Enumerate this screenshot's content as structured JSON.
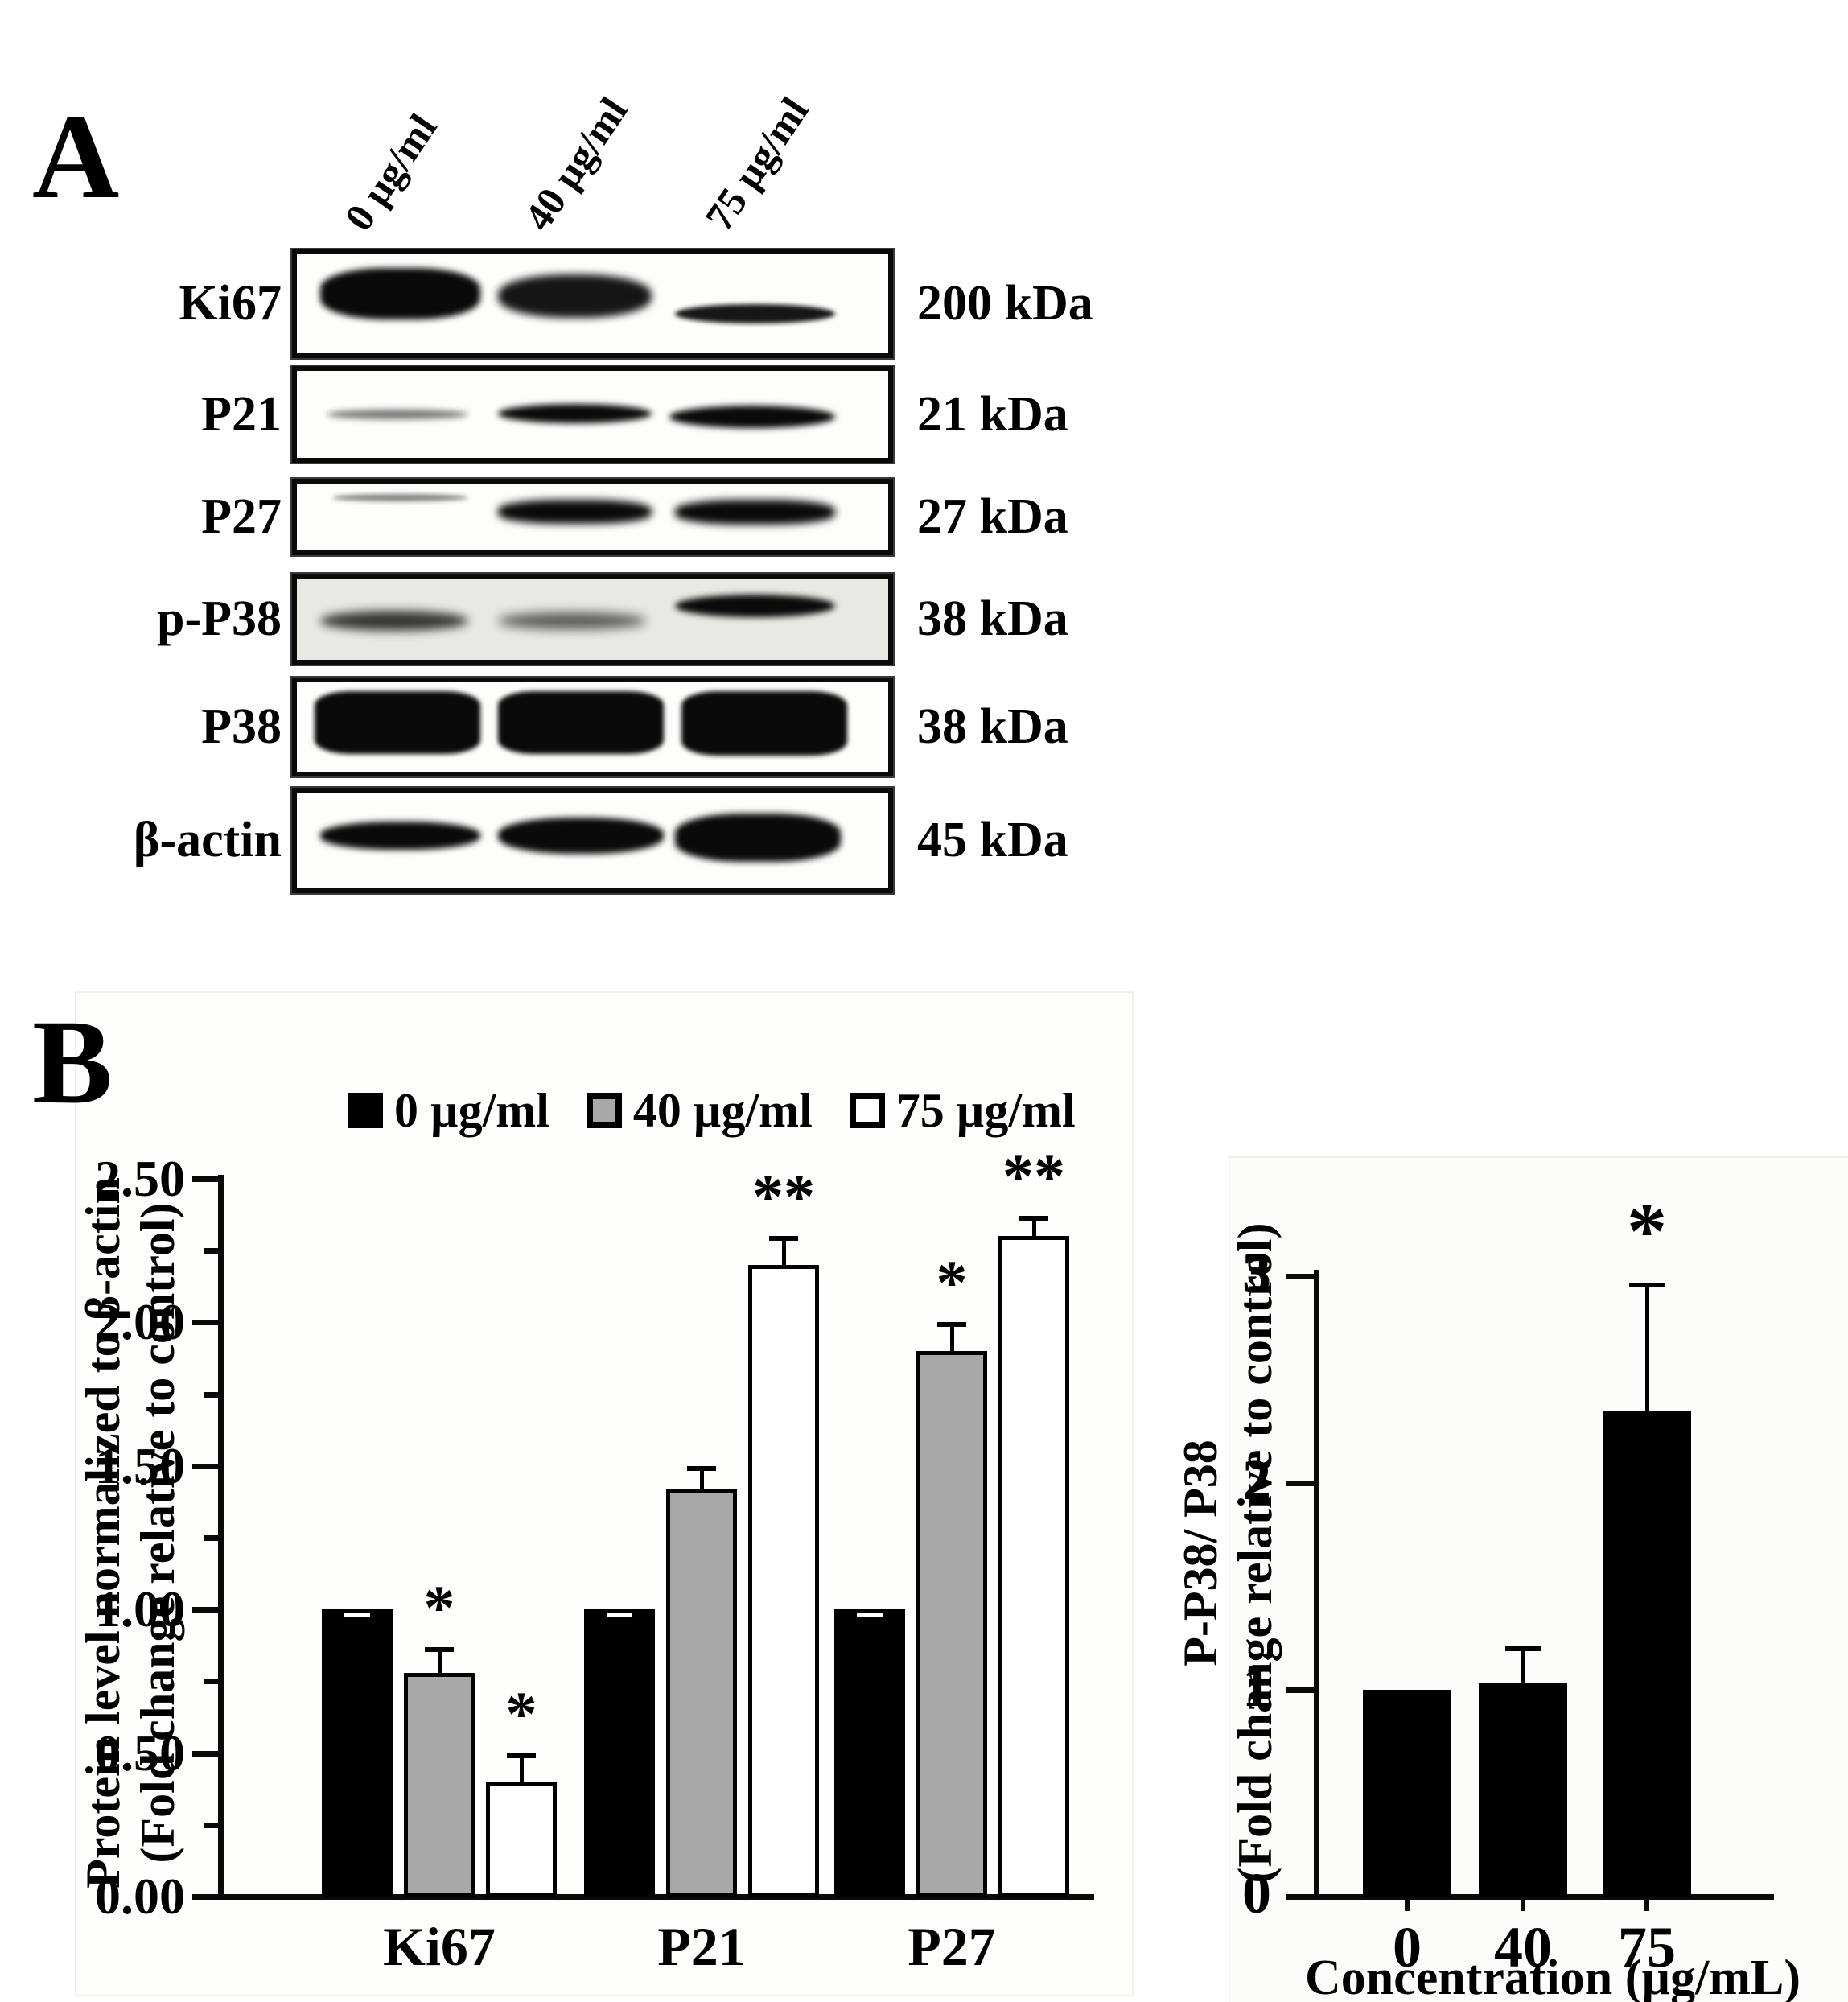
{
  "panelA": {
    "label": "A",
    "lane_labels": [
      "0 µg/ml",
      "40 µg/ml",
      "75 µg/ml"
    ],
    "rows": [
      {
        "protein": "Ki67",
        "kda": "200 kDa",
        "box_bg": "#fdfdfc",
        "bands": [
          {
            "l": 4,
            "t": 14,
            "w": 27,
            "h": 52,
            "o": 1,
            "r": 40,
            "b": 4
          },
          {
            "l": 34,
            "t": 20,
            "w": 26,
            "h": 44,
            "o": 0.95,
            "r": 45,
            "b": 5
          },
          {
            "l": 64,
            "t": 50,
            "w": 27,
            "h": 20,
            "o": 0.95,
            "r": 50,
            "b": 3
          }
        ]
      },
      {
        "protein": "P21",
        "kda": "21 kDa",
        "box_bg": "#fdfdfc",
        "bands": [
          {
            "l": 5,
            "t": 44,
            "w": 24,
            "h": 12,
            "o": 0.55,
            "r": 50,
            "b": 4
          },
          {
            "l": 34,
            "t": 38,
            "w": 26,
            "h": 22,
            "o": 1,
            "r": 50,
            "b": 4
          },
          {
            "l": 63,
            "t": 40,
            "w": 28,
            "h": 26,
            "o": 1,
            "r": 50,
            "b": 4
          }
        ]
      },
      {
        "protein": "P27",
        "kda": "27 kDa",
        "box_bg": "#fdfdfc",
        "bands": [
          {
            "l": 6,
            "t": 16,
            "w": 23,
            "h": 11,
            "o": 0.5,
            "r": 50,
            "b": 3
          },
          {
            "l": 34,
            "t": 24,
            "w": 26,
            "h": 36,
            "o": 1,
            "r": 40,
            "b": 5
          },
          {
            "l": 64,
            "t": 24,
            "w": 27,
            "h": 38,
            "o": 1,
            "r": 40,
            "b": 5
          }
        ]
      },
      {
        "protein": "p-P38",
        "kda": "38 kDa",
        "box_bg": "#e8e8e4",
        "bands": [
          {
            "l": 4,
            "t": 40,
            "w": 25,
            "h": 24,
            "o": 0.8,
            "r": 50,
            "b": 6
          },
          {
            "l": 34,
            "t": 42,
            "w": 25,
            "h": 20,
            "o": 0.65,
            "r": 50,
            "b": 7
          },
          {
            "l": 64,
            "t": 20,
            "w": 27,
            "h": 28,
            "o": 1,
            "r": 50,
            "b": 4
          }
        ]
      },
      {
        "protein": "P38",
        "kda": "38 kDa",
        "box_bg": "#fdfdfc",
        "bands": [
          {
            "l": 3,
            "t": 10,
            "w": 28,
            "h": 70,
            "o": 1,
            "r": 22,
            "b": 3
          },
          {
            "l": 34,
            "t": 10,
            "w": 28,
            "h": 70,
            "o": 1,
            "r": 22,
            "b": 3
          },
          {
            "l": 65,
            "t": 10,
            "w": 28,
            "h": 72,
            "o": 1,
            "r": 22,
            "b": 3
          }
        ]
      },
      {
        "protein": "β-actin",
        "kda": "45 kDa",
        "box_bg": "#fdfdfc",
        "bands": [
          {
            "l": 4,
            "t": 30,
            "w": 27,
            "h": 30,
            "o": 1,
            "r": 45,
            "b": 4
          },
          {
            "l": 34,
            "t": 26,
            "w": 28,
            "h": 38,
            "o": 1,
            "r": 45,
            "b": 4
          },
          {
            "l": 64,
            "t": 22,
            "w": 28,
            "h": 50,
            "o": 1,
            "r": 40,
            "b": 4
          }
        ]
      }
    ]
  },
  "panelB": {
    "label": "B",
    "legend": [
      {
        "label": "0 µg/ml",
        "fill": "#000000"
      },
      {
        "label": "40 µg/ml",
        "fill": "#a8a8a8"
      },
      {
        "label": "75 µg/ml",
        "fill": "#ffffff"
      }
    ]
  },
  "chart_data": [
    {
      "type": "bar",
      "title": "",
      "categories": [
        "Ki67",
        "P21",
        "P27"
      ],
      "series": [
        {
          "name": "0 µg/ml",
          "fill": "#000000",
          "values": [
            1.0,
            1.0,
            1.0
          ],
          "errors": [
            0.02,
            0.02,
            0.02
          ],
          "sig": [
            "",
            "",
            ""
          ]
        },
        {
          "name": "40 µg/ml",
          "fill": "#a8a8a8",
          "values": [
            0.78,
            1.42,
            1.9
          ],
          "errors": [
            0.09,
            0.08,
            0.1
          ],
          "sig": [
            "*",
            "",
            "*"
          ]
        },
        {
          "name": "75 µg/ml",
          "fill": "#ffffff",
          "values": [
            0.4,
            2.2,
            2.3
          ],
          "errors": [
            0.1,
            0.1,
            0.07
          ],
          "sig": [
            "*",
            "**",
            "**"
          ]
        }
      ],
      "ylabel_line1": "Protein level normalized to β-actin",
      "ylabel_line2": "(Fold change relative to control)",
      "yticks": [
        0,
        0.5,
        1,
        1.5,
        2,
        2.5
      ],
      "ytick_labels": [
        "0.00",
        "0.50",
        "1.00",
        "1.50",
        "2.00",
        "2.50"
      ],
      "minor_ticks": [
        0.25,
        0.75,
        1.25,
        1.75,
        2.25
      ],
      "ylim": [
        0,
        2.5
      ],
      "grid": false,
      "legend_position": "top"
    },
    {
      "type": "bar",
      "title": "",
      "categories": [
        "0",
        "40",
        "75"
      ],
      "values": [
        1.0,
        1.03,
        2.35
      ],
      "errors": [
        0,
        0.18,
        0.62
      ],
      "sig": [
        "",
        "",
        "*"
      ],
      "fill": "#000000",
      "ylabel_line1": "P-P38/ P38",
      "ylabel_line2": "(Fold change relative to control)",
      "xlabel": "Concentration (µg/mL)",
      "yticks": [
        0,
        1,
        2,
        3
      ],
      "ytick_labels": [
        "0",
        "1",
        "2",
        "3"
      ],
      "ylim": [
        0,
        3
      ],
      "grid": false
    }
  ]
}
